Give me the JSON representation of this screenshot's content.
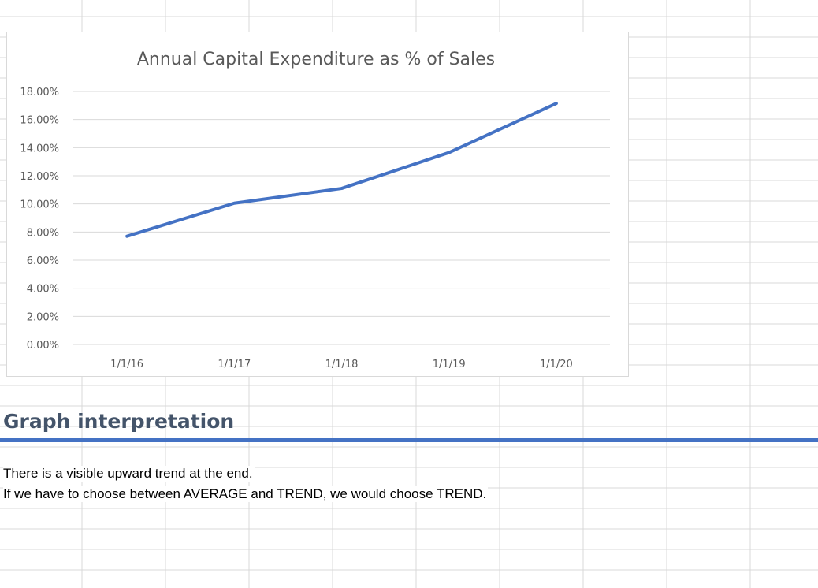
{
  "colors": {
    "accent": "#4472c4",
    "heading": "#44546a",
    "gridline": "#d9d9d9",
    "axis_text": "#595959"
  },
  "interpretation": {
    "heading": "Graph interpretation",
    "lines": [
      "There is a visible upward trend at the end.",
      "If we have to choose between AVERAGE and TREND, we would choose TREND."
    ]
  },
  "chart_data": {
    "type": "line",
    "title": "Annual Capital Expenditure as % of Sales",
    "xlabel": "",
    "ylabel": "",
    "categories": [
      "1/1/16",
      "1/1/17",
      "1/1/18",
      "1/1/19",
      "1/1/20"
    ],
    "series": [
      {
        "values": [
          0.077,
          0.1005,
          0.111,
          0.1365,
          0.1715
        ],
        "color": "#4472c4"
      }
    ],
    "yticks": [
      "18.00%",
      "16.00%",
      "14.00%",
      "12.00%",
      "10.00%",
      "8.00%",
      "6.00%",
      "4.00%",
      "2.00%",
      "0.00%"
    ],
    "ylim": [
      0,
      0.18
    ],
    "grid": true,
    "legend": "none"
  }
}
